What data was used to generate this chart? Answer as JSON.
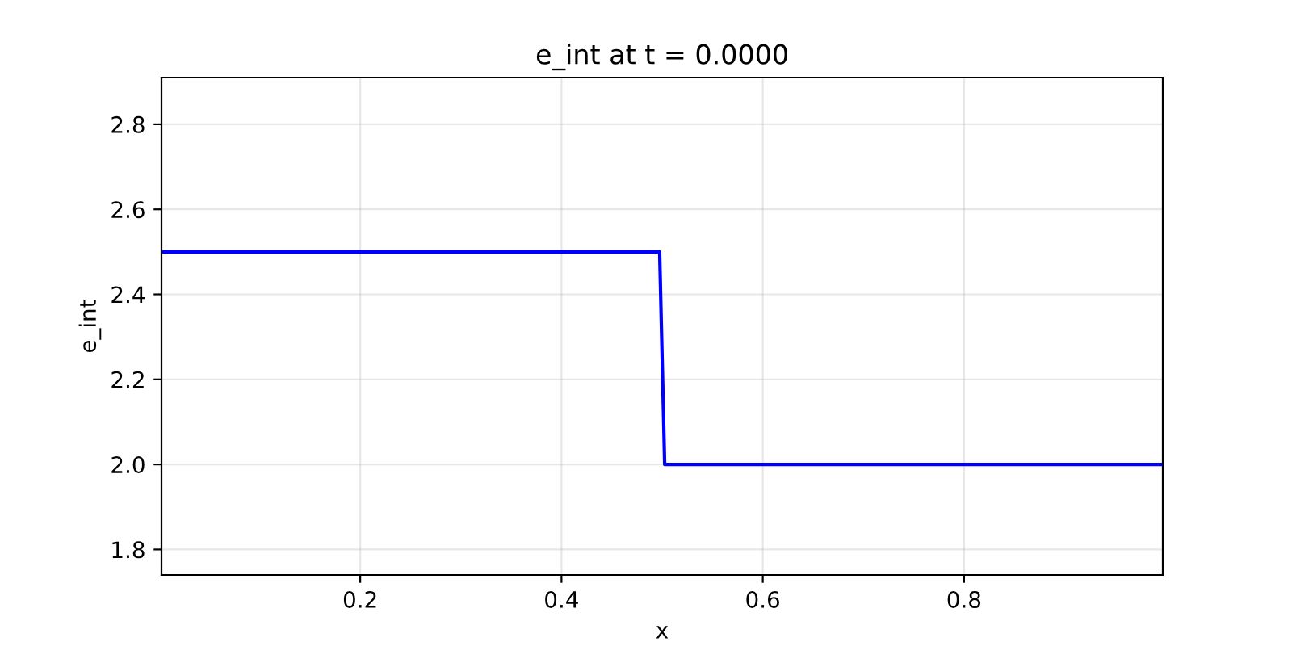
{
  "chart_data": {
    "type": "line",
    "title": "e_int at t = 0.0000",
    "xlabel": "x",
    "ylabel": "e_int",
    "series": [
      {
        "color": "#0000ff",
        "x": [
          0.0025,
          0.4975,
          0.5025,
          0.9975
        ],
        "values": [
          2.5,
          2.5,
          2.0,
          2.0
        ]
      }
    ],
    "xlim": [
      0.0025,
      0.9975
    ],
    "xticks": [
      0.2,
      0.4,
      0.6,
      0.8
    ],
    "ylim": [
      1.74,
      2.91
    ],
    "yticks": [
      1.8,
      {
        "value": 2,
        "label": "2.0"
      },
      2.2,
      2.4,
      2.6,
      2.8
    ],
    "grid": true
  }
}
